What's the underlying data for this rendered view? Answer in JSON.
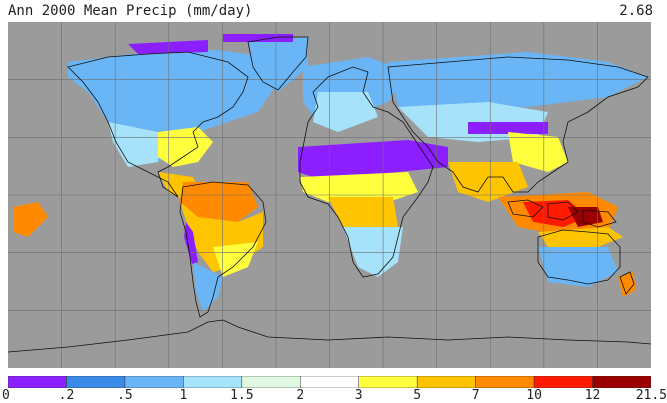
{
  "title": "Ann 2000 Mean Precip (mm/day)",
  "global_value": "2.68",
  "colors": {
    "background": "#9b9b9b",
    "gridline": "#6e6e6e",
    "coastline": "#111111"
  },
  "legend": {
    "ticks": [
      "0",
      ".2",
      ".5",
      "1",
      "1.5",
      "2",
      "3",
      "5",
      "7",
      "10",
      "12",
      "21.5"
    ],
    "colors": [
      "#8b1fff",
      "#3a8be8",
      "#6ab5f5",
      "#a6e3fb",
      "#e0f8e1",
      "#ffffff",
      "#ffff3e",
      "#ffc400",
      "#ff8a00",
      "#ff1a00",
      "#9b0000"
    ]
  },
  "map": {
    "projection": "equirectangular",
    "grid": {
      "lon_step_deg": 30,
      "lat_step_deg": 30
    }
  }
}
